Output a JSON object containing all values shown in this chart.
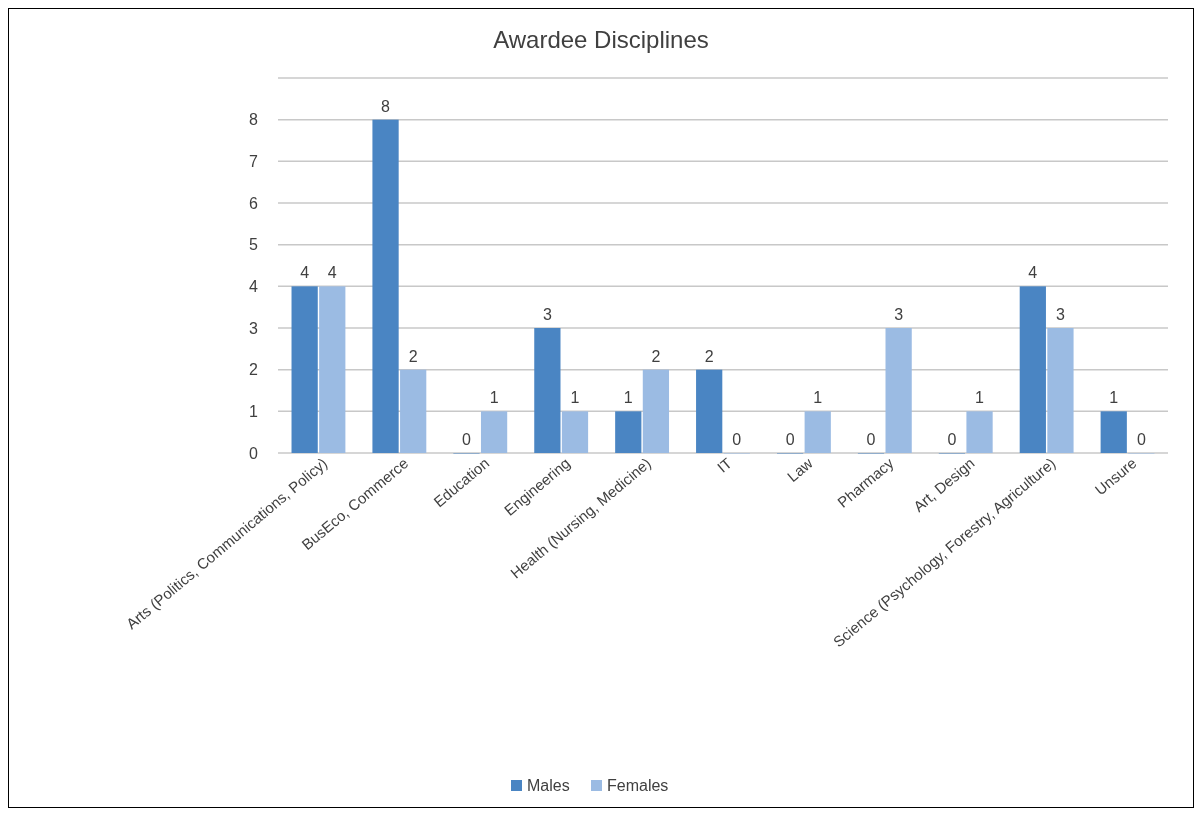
{
  "chart_data": {
    "type": "bar",
    "title": "Awardee Disciplines",
    "categories": [
      "Arts (Politics, Communications, Policy)",
      "BusEco, Commerce",
      "Education",
      "Engineering",
      "Health (Nursing, Medicine)",
      "IT",
      "Law",
      "Pharmacy",
      "Art, Design",
      "Science (Psychology, Forestry, Agriculture)",
      "Unsure"
    ],
    "series": [
      {
        "name": "Males",
        "color": "#4a85c3",
        "values": [
          4,
          8,
          0,
          3,
          1,
          2,
          0,
          0,
          0,
          4,
          1
        ]
      },
      {
        "name": "Females",
        "color": "#9bbbe3",
        "values": [
          4,
          2,
          1,
          1,
          2,
          0,
          1,
          3,
          1,
          3,
          0
        ]
      }
    ],
    "ylim": [
      0,
      9
    ],
    "yticks": [
      0,
      1,
      2,
      3,
      4,
      5,
      6,
      7,
      8,
      {
        "value": 9,
        "label": null
      }
    ],
    "grid": "y",
    "legend": "bottom",
    "data_labels": true
  }
}
